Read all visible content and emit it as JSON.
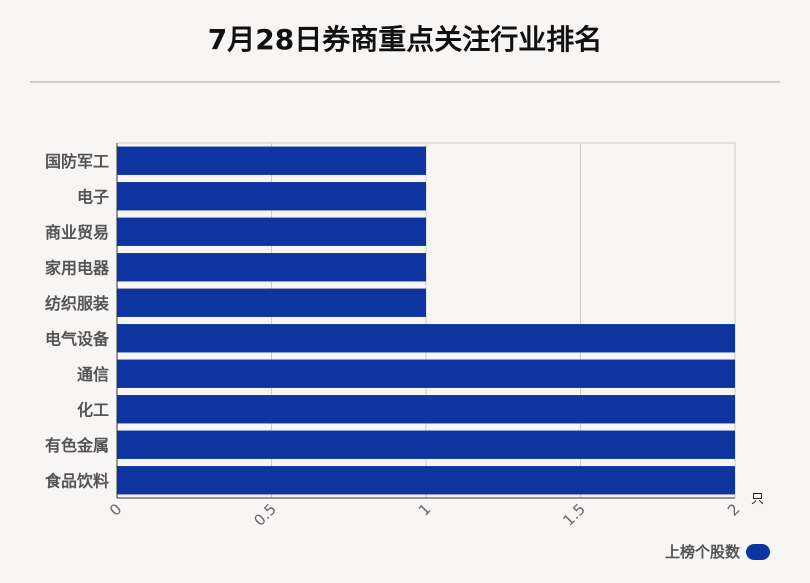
{
  "title": "7月28日券商重点关注行业排名",
  "colors": {
    "bar": "#0e34a0",
    "grid": "#cccccc",
    "axis": "#333333"
  },
  "legend": {
    "label": "上榜个股数",
    "icon": "pill-swatch"
  },
  "chart_data": {
    "type": "bar",
    "orientation": "horizontal",
    "title": "7月28日券商重点关注行业排名",
    "categories": [
      "国防军工",
      "电子",
      "商业贸易",
      "家用电器",
      "纺织服装",
      "电气设备",
      "通信",
      "化工",
      "有色金属",
      "食品饮料"
    ],
    "series": [
      {
        "name": "上榜个股数",
        "values": [
          1,
          1,
          1,
          1,
          1,
          2,
          2,
          2,
          2,
          2
        ]
      }
    ],
    "xlim": [
      0,
      2
    ],
    "xticks": [
      "0",
      "0.5",
      "1",
      "1.5",
      "2"
    ],
    "xticks_values": [
      0,
      0.5,
      1,
      1.5,
      2
    ],
    "xunit": "只",
    "grid": true,
    "legend_position": "bottom-right"
  }
}
